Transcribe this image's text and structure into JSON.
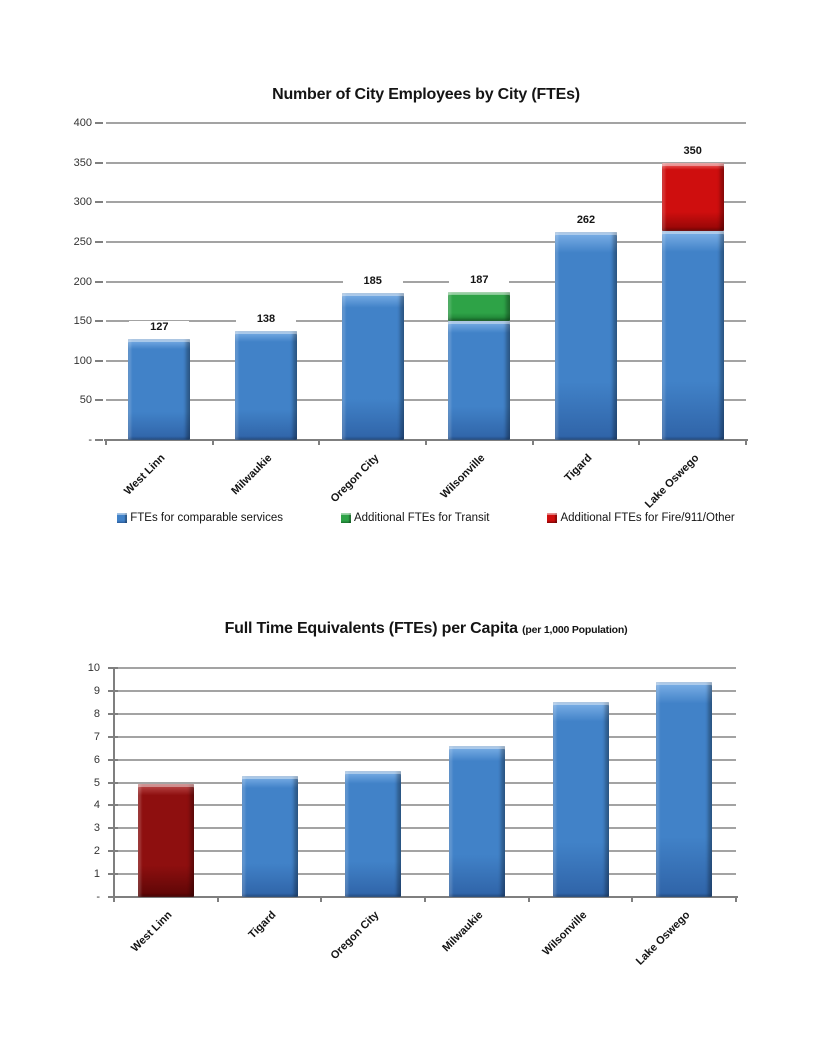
{
  "page": {
    "background": "#ffffff"
  },
  "chart_data": [
    {
      "id": "employees-by-city",
      "type": "bar",
      "stacked": true,
      "title": "Number of City Employees by City (FTEs)",
      "categories": [
        "West Linn",
        "Milwaukie",
        "Oregon City",
        "Wilsonville",
        "Tigard",
        "Lake Oswego"
      ],
      "series": [
        {
          "name": "FTEs for comparable services",
          "values": [
            127,
            138,
            185,
            150,
            262,
            264
          ],
          "color": {
            "base": "#4182C8",
            "light": "#7FB2E8",
            "dark": "#2F63A7"
          }
        },
        {
          "name": "Additional FTEs for Transit",
          "values": [
            0,
            0,
            0,
            37,
            0,
            0
          ],
          "color": {
            "base": "#2EA347",
            "light": "#7ED28C",
            "dark": "#1C7A31"
          }
        },
        {
          "name": "Additional FTEs for Fire/911/Other",
          "values": [
            0,
            0,
            0,
            0,
            0,
            86
          ],
          "color": {
            "base": "#CF0E0E",
            "light": "#F07070",
            "dark": "#8F0606"
          }
        }
      ],
      "data_labels": [
        127,
        138,
        185,
        187,
        262,
        350
      ],
      "ylim": [
        0,
        400
      ],
      "ytick_step": 50,
      "zero_label": "-",
      "grid": true,
      "legend_position": "bottom"
    },
    {
      "id": "fte-per-capita",
      "type": "bar",
      "stacked": false,
      "title": "Full Time Equivalents (FTEs) per Capita",
      "subtitle": "(per 1,000 Population)",
      "categories": [
        "West Linn",
        "Tigard",
        "Oregon City",
        "Milwaukie",
        "Wilsonville",
        "Lake Oswego"
      ],
      "values": [
        4.95,
        5.3,
        5.5,
        6.6,
        8.5,
        9.4
      ],
      "bar_colors": [
        {
          "base": "#8E0F0F",
          "light": "#C05050",
          "dark": "#5C0606"
        },
        {
          "base": "#4182C8",
          "light": "#7FB2E8",
          "dark": "#2F63A7"
        },
        {
          "base": "#4182C8",
          "light": "#7FB2E8",
          "dark": "#2F63A7"
        },
        {
          "base": "#4182C8",
          "light": "#7FB2E8",
          "dark": "#2F63A7"
        },
        {
          "base": "#4182C8",
          "light": "#7FB2E8",
          "dark": "#2F63A7"
        },
        {
          "base": "#4182C8",
          "light": "#7FB2E8",
          "dark": "#2F63A7"
        }
      ],
      "ylim": [
        0,
        10
      ],
      "ytick_step": 1,
      "zero_label": "-",
      "grid": true,
      "legend_position": "none"
    }
  ]
}
